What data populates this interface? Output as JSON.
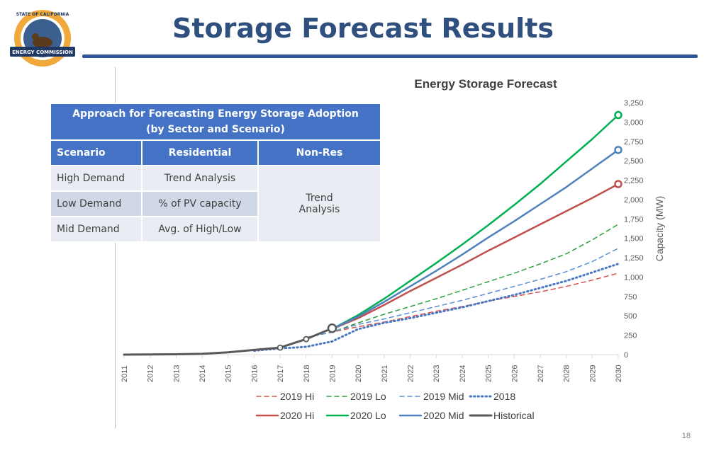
{
  "slide": {
    "title": "Storage Forecast Results",
    "page_number": "18",
    "logo": {
      "top_text": "STATE OF CALIFORNIA",
      "ribbon_text": "ENERGY COMMISSION"
    }
  },
  "table": {
    "header_line1": "Approach for Forecasting Energy Storage Adoption",
    "header_line2": "(by Sector and Scenario)",
    "columns": [
      "Scenario",
      "Residential",
      "Non-Res"
    ],
    "rows": [
      {
        "scenario": "High Demand",
        "residential": "Trend Analysis"
      },
      {
        "scenario": "Low Demand",
        "residential": "% of PV capacity"
      },
      {
        "scenario": "Mid Demand",
        "residential": "Avg. of High/Low"
      }
    ],
    "nonres_line1": "Trend",
    "nonres_line2": "Analysis"
  },
  "chart_data": {
    "type": "line",
    "title": "Energy Storage Forecast",
    "ylabel": "Capacity (MW)",
    "xlabel": "",
    "x": [
      2011,
      2012,
      2013,
      2014,
      2015,
      2016,
      2017,
      2018,
      2019,
      2020,
      2021,
      2022,
      2023,
      2024,
      2025,
      2026,
      2027,
      2028,
      2029,
      2030
    ],
    "x_tick_labels": [
      "2011",
      "2012",
      "2013",
      "2014",
      "2015",
      "2016",
      "2017",
      "2018",
      "2019",
      "2020",
      "2021",
      "2022",
      "2023",
      "2024",
      "2025",
      "2026",
      "2027",
      "2028",
      "2029",
      "2030"
    ],
    "ylim": [
      0,
      3250
    ],
    "y_ticks": [
      0,
      250,
      500,
      750,
      1000,
      1250,
      1500,
      1750,
      2000,
      2250,
      2500,
      2750,
      3000,
      3250
    ],
    "y_tick_labels": [
      "0",
      "250",
      "500",
      "750",
      "1,000",
      "1,250",
      "1,500",
      "1,750",
      "2,000",
      "2,250",
      "2,500",
      "2,750",
      "3,000",
      "3,250"
    ],
    "y_axis_side": "right",
    "grid": false,
    "legend_position": "bottom",
    "series": [
      {
        "name": "2019 Hi",
        "color": "#d9534f",
        "style": "dashed",
        "width": 1.5,
        "x": [
          2018,
          2019,
          2020,
          2021,
          2022,
          2023,
          2024,
          2025,
          2026,
          2027,
          2028,
          2029,
          2030
        ],
        "y": [
          220,
          290,
          360,
          420,
          490,
          560,
          620,
          690,
          750,
          810,
          880,
          960,
          1050
        ]
      },
      {
        "name": "2019 Lo",
        "color": "#2e9e3e",
        "style": "dashed",
        "width": 1.5,
        "x": [
          2018,
          2019,
          2020,
          2021,
          2022,
          2023,
          2024,
          2025,
          2026,
          2027,
          2028,
          2029,
          2030
        ],
        "y": [
          220,
          290,
          410,
          520,
          620,
          720,
          830,
          940,
          1050,
          1170,
          1300,
          1480,
          1680
        ]
      },
      {
        "name": "2019 Mid",
        "color": "#5b8fd1",
        "style": "dashed",
        "width": 1.5,
        "x": [
          2018,
          2019,
          2020,
          2021,
          2022,
          2023,
          2024,
          2025,
          2026,
          2027,
          2028,
          2029,
          2030
        ],
        "y": [
          220,
          290,
          390,
          460,
          540,
          620,
          700,
          790,
          880,
          970,
          1070,
          1200,
          1370
        ]
      },
      {
        "name": "2018",
        "color": "#4a78c2",
        "style": "dotted",
        "width": 3,
        "x": [
          2016,
          2017,
          2018,
          2019,
          2020,
          2021,
          2022,
          2023,
          2024,
          2025,
          2026,
          2027,
          2028,
          2029,
          2030
        ],
        "y": [
          50,
          80,
          100,
          170,
          330,
          410,
          470,
          540,
          610,
          690,
          770,
          860,
          950,
          1060,
          1170
        ]
      },
      {
        "name": "2020 Hi",
        "color": "#c0504d",
        "style": "solid",
        "width": 2.5,
        "x": [
          2019,
          2020,
          2021,
          2022,
          2023,
          2024,
          2025,
          2026,
          2027,
          2028,
          2029,
          2030
        ],
        "y": [
          330,
          470,
          640,
          820,
          990,
          1160,
          1340,
          1510,
          1680,
          1850,
          2020,
          2200
        ]
      },
      {
        "name": "2020 Lo",
        "color": "#00b050",
        "style": "solid",
        "width": 2.5,
        "x": [
          2019,
          2020,
          2021,
          2022,
          2023,
          2024,
          2025,
          2026,
          2027,
          2028,
          2029,
          2030
        ],
        "y": [
          330,
          510,
          720,
          950,
          1180,
          1420,
          1670,
          1930,
          2200,
          2490,
          2780,
          3090
        ]
      },
      {
        "name": "2020 Mid",
        "color": "#4f81bd",
        "style": "solid",
        "width": 2.5,
        "x": [
          2019,
          2020,
          2021,
          2022,
          2023,
          2024,
          2025,
          2026,
          2027,
          2028,
          2029,
          2030
        ],
        "y": [
          330,
          490,
          680,
          880,
          1080,
          1290,
          1510,
          1720,
          1940,
          2160,
          2400,
          2640
        ]
      },
      {
        "name": "Historical",
        "color": "#595959",
        "style": "solid",
        "width": 3,
        "x": [
          2011,
          2012,
          2013,
          2014,
          2015,
          2016,
          2017,
          2018,
          2019
        ],
        "y": [
          0,
          2,
          5,
          10,
          30,
          60,
          90,
          200,
          340
        ]
      }
    ],
    "endpoint_markers": [
      {
        "series": "2020 Lo",
        "x": 2030,
        "y": 3090
      },
      {
        "series": "2020 Mid",
        "x": 2030,
        "y": 2640
      },
      {
        "series": "2020 Hi",
        "x": 2030,
        "y": 2200
      }
    ],
    "historical_markers": [
      {
        "x": 2017,
        "y": 90
      },
      {
        "x": 2018,
        "y": 200
      },
      {
        "x": 2019,
        "y": 340
      }
    ]
  }
}
